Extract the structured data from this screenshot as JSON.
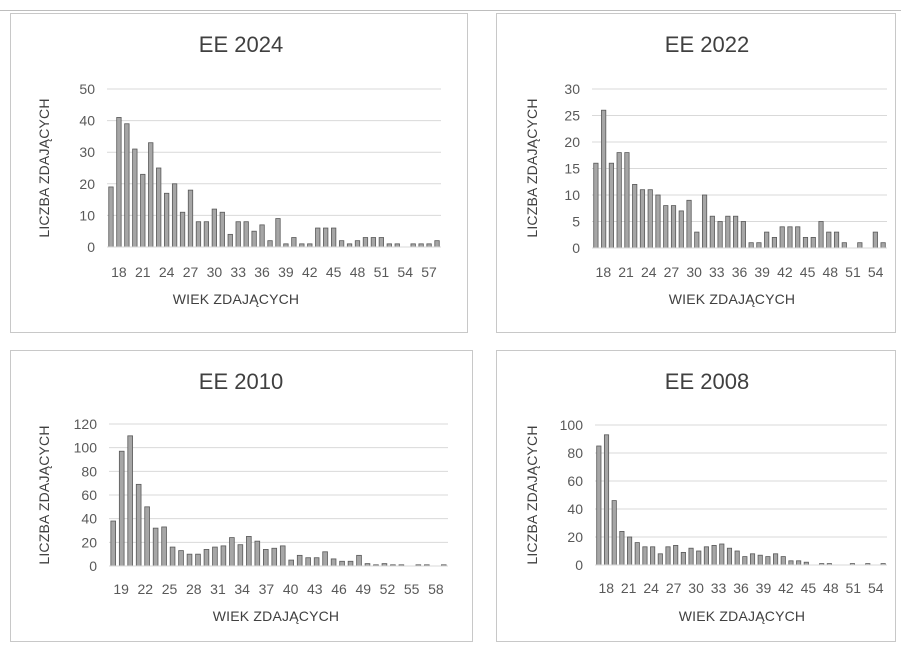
{
  "chart_data": [
    {
      "type": "bar",
      "title": "EE 2024",
      "xlabel": "WIEK ZDAJĄCYCH",
      "ylabel": "LICZBA ZDAJĄCYCH",
      "ylim": [
        0,
        50
      ],
      "yticks": [
        "0",
        "10",
        "20",
        "30",
        "40",
        "50"
      ],
      "grid": true,
      "categories": [
        "18",
        "19",
        "20",
        "21",
        "22",
        "23",
        "24",
        "25",
        "26",
        "27",
        "28",
        "29",
        "30",
        "31",
        "32",
        "33",
        "34",
        "35",
        "36",
        "37",
        "38",
        "39",
        "40",
        "41",
        "42",
        "43",
        "44",
        "45",
        "46",
        "47",
        "48",
        "49",
        "50",
        "51",
        "52",
        "53",
        "54",
        "55",
        "56",
        "57",
        "58",
        "59"
      ],
      "x_tick_labels": [
        "18",
        "21",
        "24",
        "27",
        "30",
        "33",
        "36",
        "39",
        "42",
        "45",
        "48",
        "51",
        "54",
        "57"
      ],
      "values": [
        19,
        41,
        39,
        31,
        23,
        33,
        25,
        17,
        20,
        11,
        18,
        8,
        8,
        12,
        11,
        4,
        8,
        8,
        5,
        7,
        2,
        9,
        1,
        3,
        1,
        1,
        6,
        6,
        6,
        2,
        1,
        2,
        3,
        3,
        3,
        1,
        1,
        0,
        1,
        1,
        1,
        2
      ]
    },
    {
      "type": "bar",
      "title": "EE 2022",
      "xlabel": "WIEK ZDAJĄCYCH",
      "ylabel": "LICZBA ZDAJĄCYCH",
      "ylim": [
        0,
        30
      ],
      "yticks": [
        "0",
        "5",
        "10",
        "15",
        "20",
        "25",
        "30"
      ],
      "grid": true,
      "categories": [
        "19",
        "20",
        "21",
        "22",
        "23",
        "24",
        "25",
        "26",
        "27",
        "28",
        "29",
        "30",
        "31",
        "32",
        "33",
        "34",
        "35",
        "36",
        "37",
        "38",
        "39",
        "40",
        "41",
        "42",
        "43",
        "44",
        "45",
        "46",
        "47",
        "48",
        "49",
        "50",
        "51",
        "52",
        "53",
        "54",
        "55",
        "56"
      ],
      "x_tick_labels": [
        "18",
        "21",
        "24",
        "27",
        "30",
        "33",
        "36",
        "39",
        "42",
        "45",
        "48",
        "51",
        "54"
      ],
      "values": [
        16,
        26,
        16,
        18,
        18,
        12,
        11,
        11,
        10,
        8,
        8,
        7,
        9,
        3,
        10,
        6,
        5,
        6,
        6,
        5,
        1,
        1,
        3,
        2,
        4,
        4,
        4,
        2,
        2,
        5,
        3,
        3,
        1,
        0,
        1,
        0,
        3,
        1
      ]
    },
    {
      "type": "bar",
      "title": "EE 2010",
      "xlabel": "WIEK ZDAJĄCYCH",
      "ylabel": "LICZBA ZDAJĄCYCH",
      "ylim": [
        0,
        120
      ],
      "yticks": [
        "0",
        "20",
        "40",
        "60",
        "80",
        "100",
        "120"
      ],
      "grid": true,
      "categories": [
        "19",
        "20",
        "21",
        "22",
        "23",
        "24",
        "25",
        "26",
        "27",
        "28",
        "29",
        "30",
        "31",
        "32",
        "33",
        "34",
        "35",
        "36",
        "37",
        "38",
        "39",
        "40",
        "41",
        "42",
        "43",
        "44",
        "45",
        "46",
        "47",
        "48",
        "49",
        "50",
        "51",
        "52",
        "53",
        "54",
        "55",
        "56",
        "57",
        "58"
      ],
      "x_tick_labels": [
        "19",
        "22",
        "25",
        "28",
        "31",
        "34",
        "37",
        "40",
        "43",
        "46",
        "49",
        "52",
        "55",
        "58"
      ],
      "values": [
        38,
        97,
        110,
        69,
        50,
        32,
        33,
        16,
        13,
        10,
        10,
        14,
        16,
        17,
        24,
        18,
        25,
        21,
        14,
        15,
        17,
        5,
        9,
        7,
        7,
        12,
        6,
        4,
        4,
        9,
        2,
        1,
        2,
        1,
        1,
        0,
        1,
        1,
        0,
        1
      ]
    },
    {
      "type": "bar",
      "title": "EE 2008",
      "xlabel": "WIEK ZDAJĄCYCH",
      "ylabel": "LICZBA ZDAJĄCYCH",
      "ylim": [
        0,
        100
      ],
      "yticks": [
        "0",
        "20",
        "40",
        "60",
        "80",
        "100"
      ],
      "grid": true,
      "categories": [
        "19",
        "20",
        "21",
        "22",
        "23",
        "24",
        "25",
        "26",
        "27",
        "28",
        "29",
        "30",
        "31",
        "32",
        "33",
        "34",
        "35",
        "36",
        "37",
        "38",
        "39",
        "40",
        "41",
        "42",
        "43",
        "44",
        "45",
        "46",
        "47",
        "48",
        "49",
        "50",
        "51",
        "52",
        "53",
        "54",
        "55",
        "56"
      ],
      "x_tick_labels": [
        "18",
        "21",
        "24",
        "27",
        "30",
        "33",
        "36",
        "39",
        "42",
        "45",
        "48",
        "51",
        "54"
      ],
      "values": [
        85,
        93,
        46,
        24,
        20,
        16,
        13,
        13,
        8,
        13,
        14,
        9,
        12,
        10,
        13,
        14,
        15,
        12,
        10,
        6,
        8,
        7,
        6,
        8,
        6,
        3,
        3,
        2,
        0,
        1,
        1,
        0,
        0,
        1,
        0,
        1,
        0,
        1
      ]
    }
  ]
}
